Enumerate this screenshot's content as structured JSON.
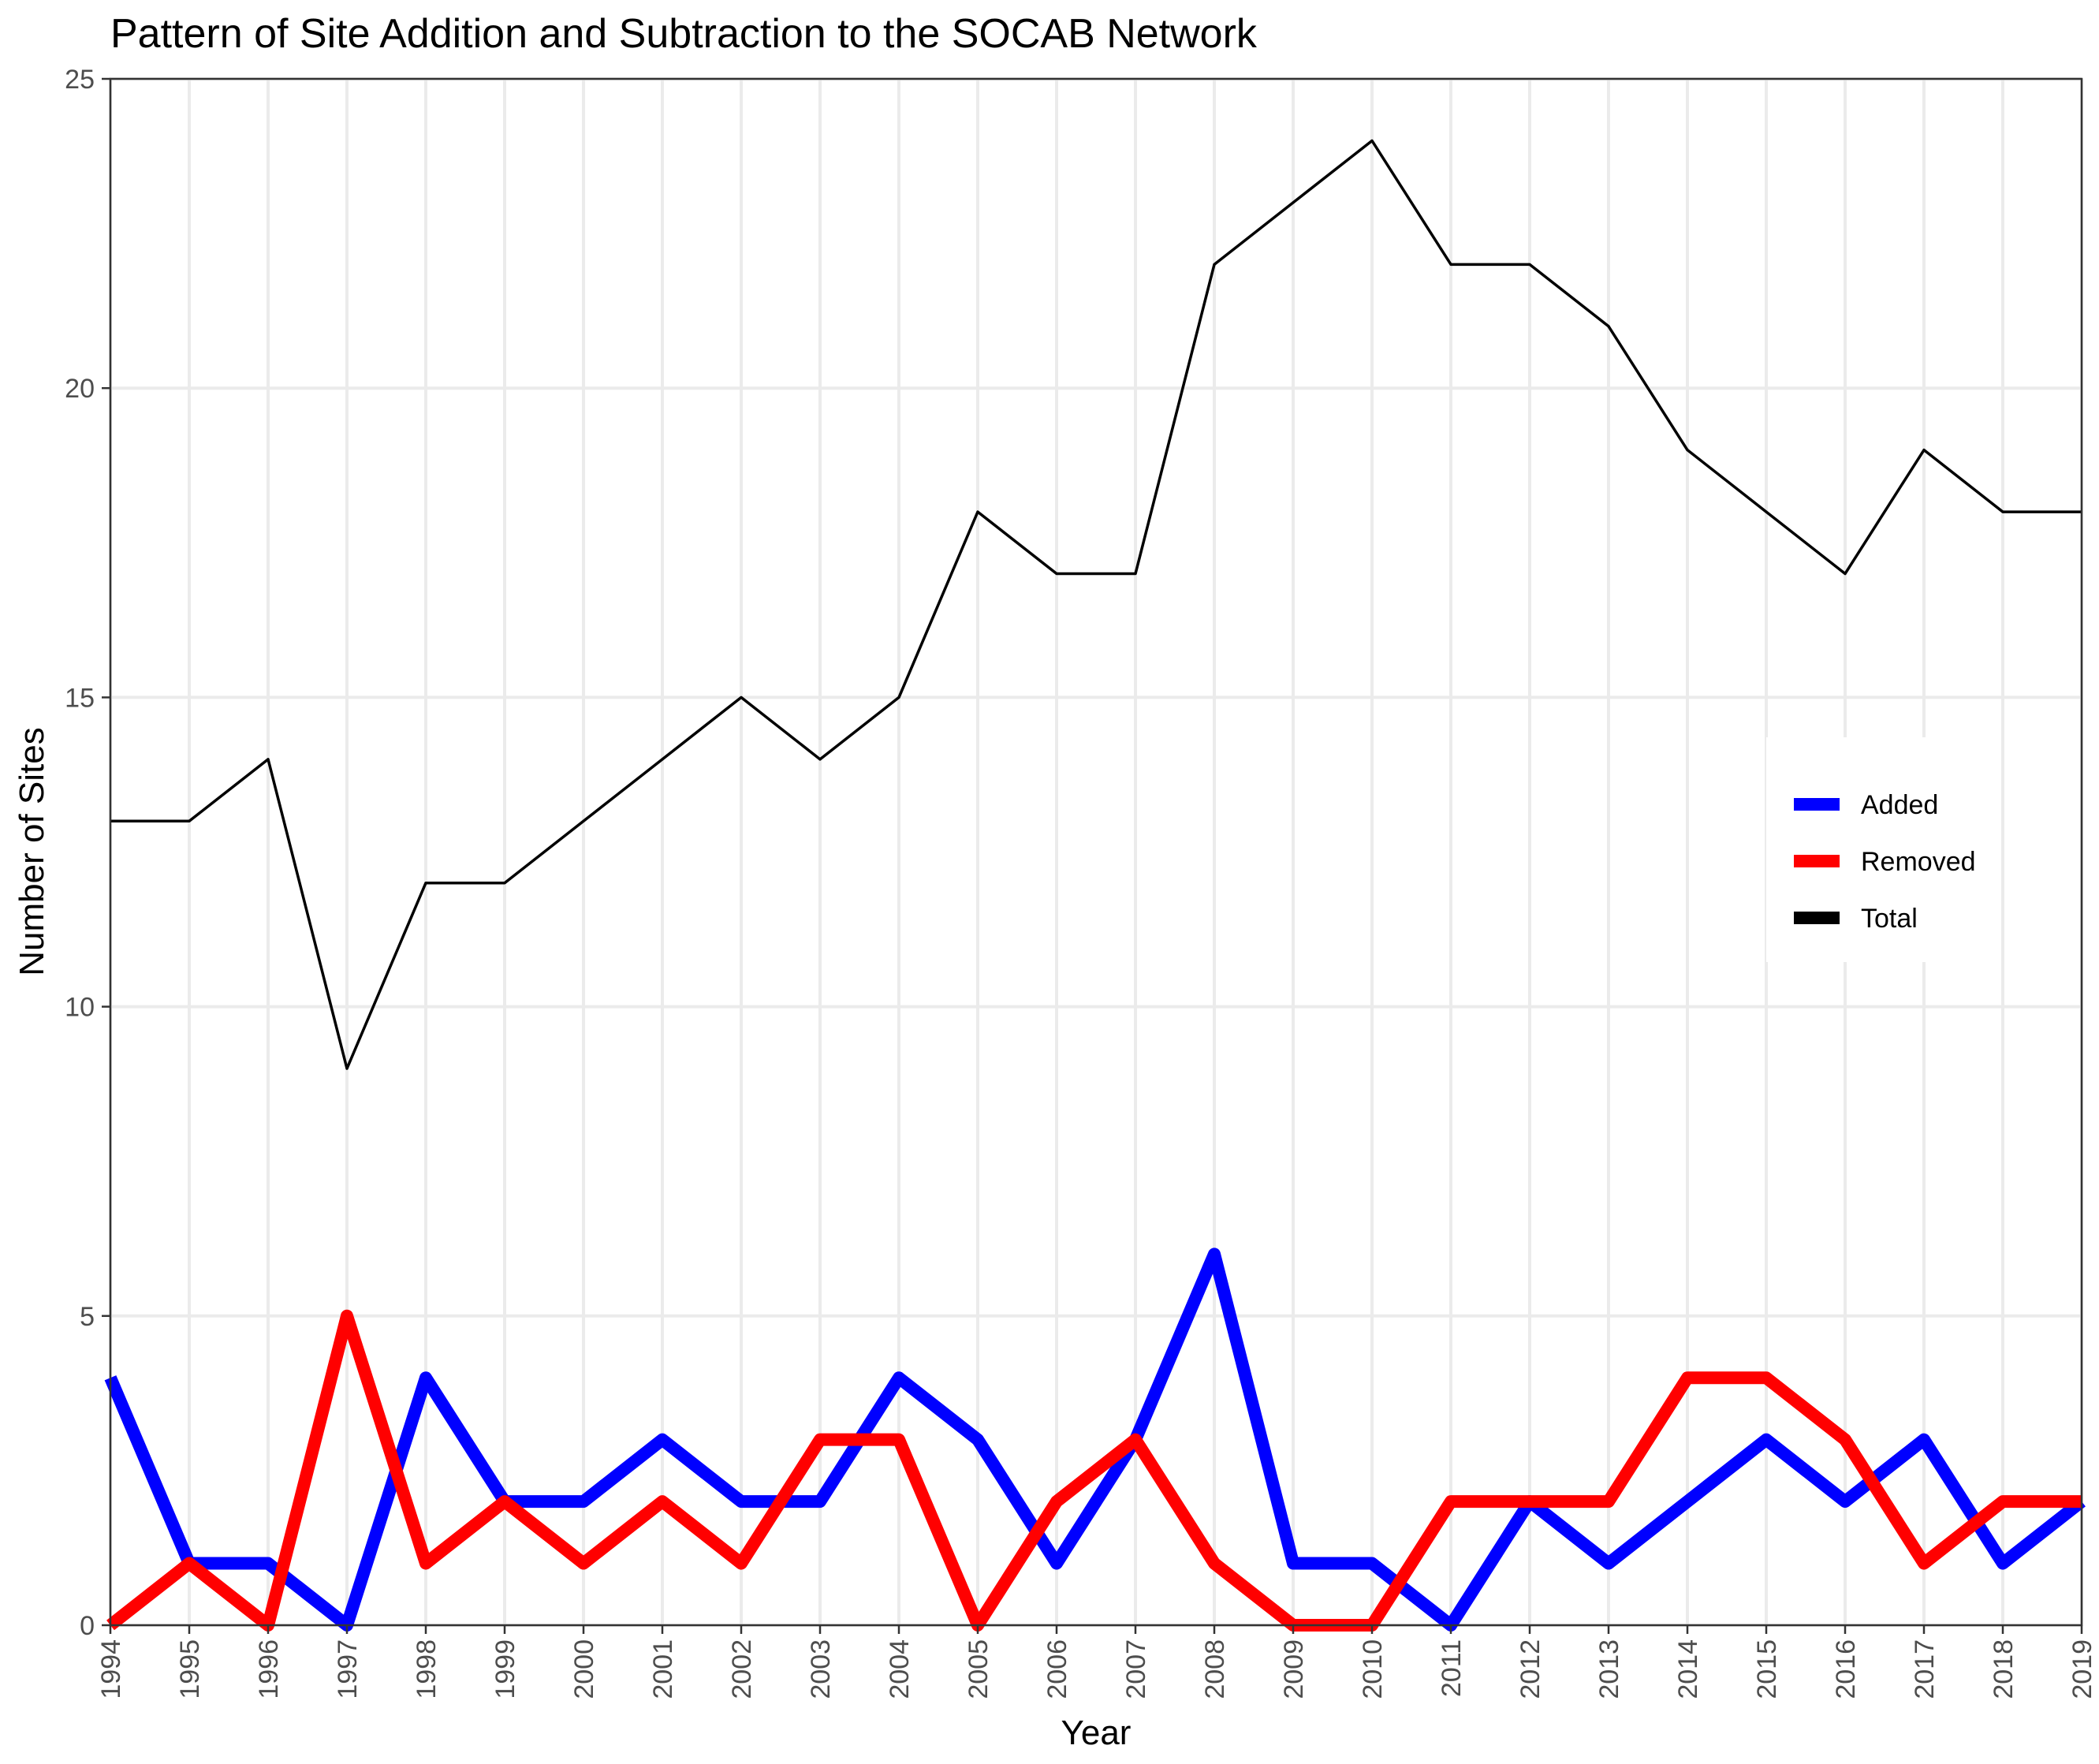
{
  "chart_data": {
    "type": "line",
    "title": "Pattern of Site Addition and Subtraction to the SOCAB Network",
    "xlabel": "Year",
    "ylabel": "Number of Sites",
    "x": [
      1994,
      1995,
      1996,
      1997,
      1998,
      1999,
      2000,
      2001,
      2002,
      2003,
      2004,
      2005,
      2006,
      2007,
      2008,
      2009,
      2010,
      2011,
      2012,
      2013,
      2014,
      2015,
      2016,
      2017,
      2018,
      2019
    ],
    "xticks": [
      "1994",
      "1995",
      "1996",
      "1997",
      "1998",
      "1999",
      "2000",
      "2001",
      "2002",
      "2003",
      "2004",
      "2005",
      "2006",
      "2007",
      "2008",
      "2009",
      "2010",
      "2011",
      "2012",
      "2013",
      "2014",
      "2015",
      "2016",
      "2017",
      "2018",
      "2019"
    ],
    "yticks": [
      "0",
      "5",
      "10",
      "15",
      "20",
      "25"
    ],
    "ylim": [
      0,
      25
    ],
    "grid": true,
    "legend_position": "right",
    "series": [
      {
        "name": "Added",
        "color": "#0000ff",
        "values": [
          4,
          1,
          1,
          0,
          4,
          2,
          2,
          3,
          2,
          2,
          4,
          3,
          1,
          3,
          6,
          1,
          1,
          0,
          2,
          1,
          2,
          3,
          2,
          3,
          1,
          2
        ]
      },
      {
        "name": "Removed",
        "color": "#ff0000",
        "values": [
          0,
          1,
          0,
          5,
          1,
          2,
          1,
          2,
          1,
          3,
          3,
          0,
          2,
          3,
          1,
          0,
          0,
          2,
          2,
          2,
          4,
          4,
          3,
          1,
          2,
          2
        ]
      },
      {
        "name": "Total",
        "color": "#000000",
        "values": [
          13,
          13,
          14,
          9,
          12,
          12,
          13,
          14,
          15,
          14,
          15,
          18,
          17,
          17,
          22,
          23,
          24,
          22,
          22,
          21,
          19,
          18,
          17,
          19,
          18,
          18
        ]
      }
    ]
  }
}
